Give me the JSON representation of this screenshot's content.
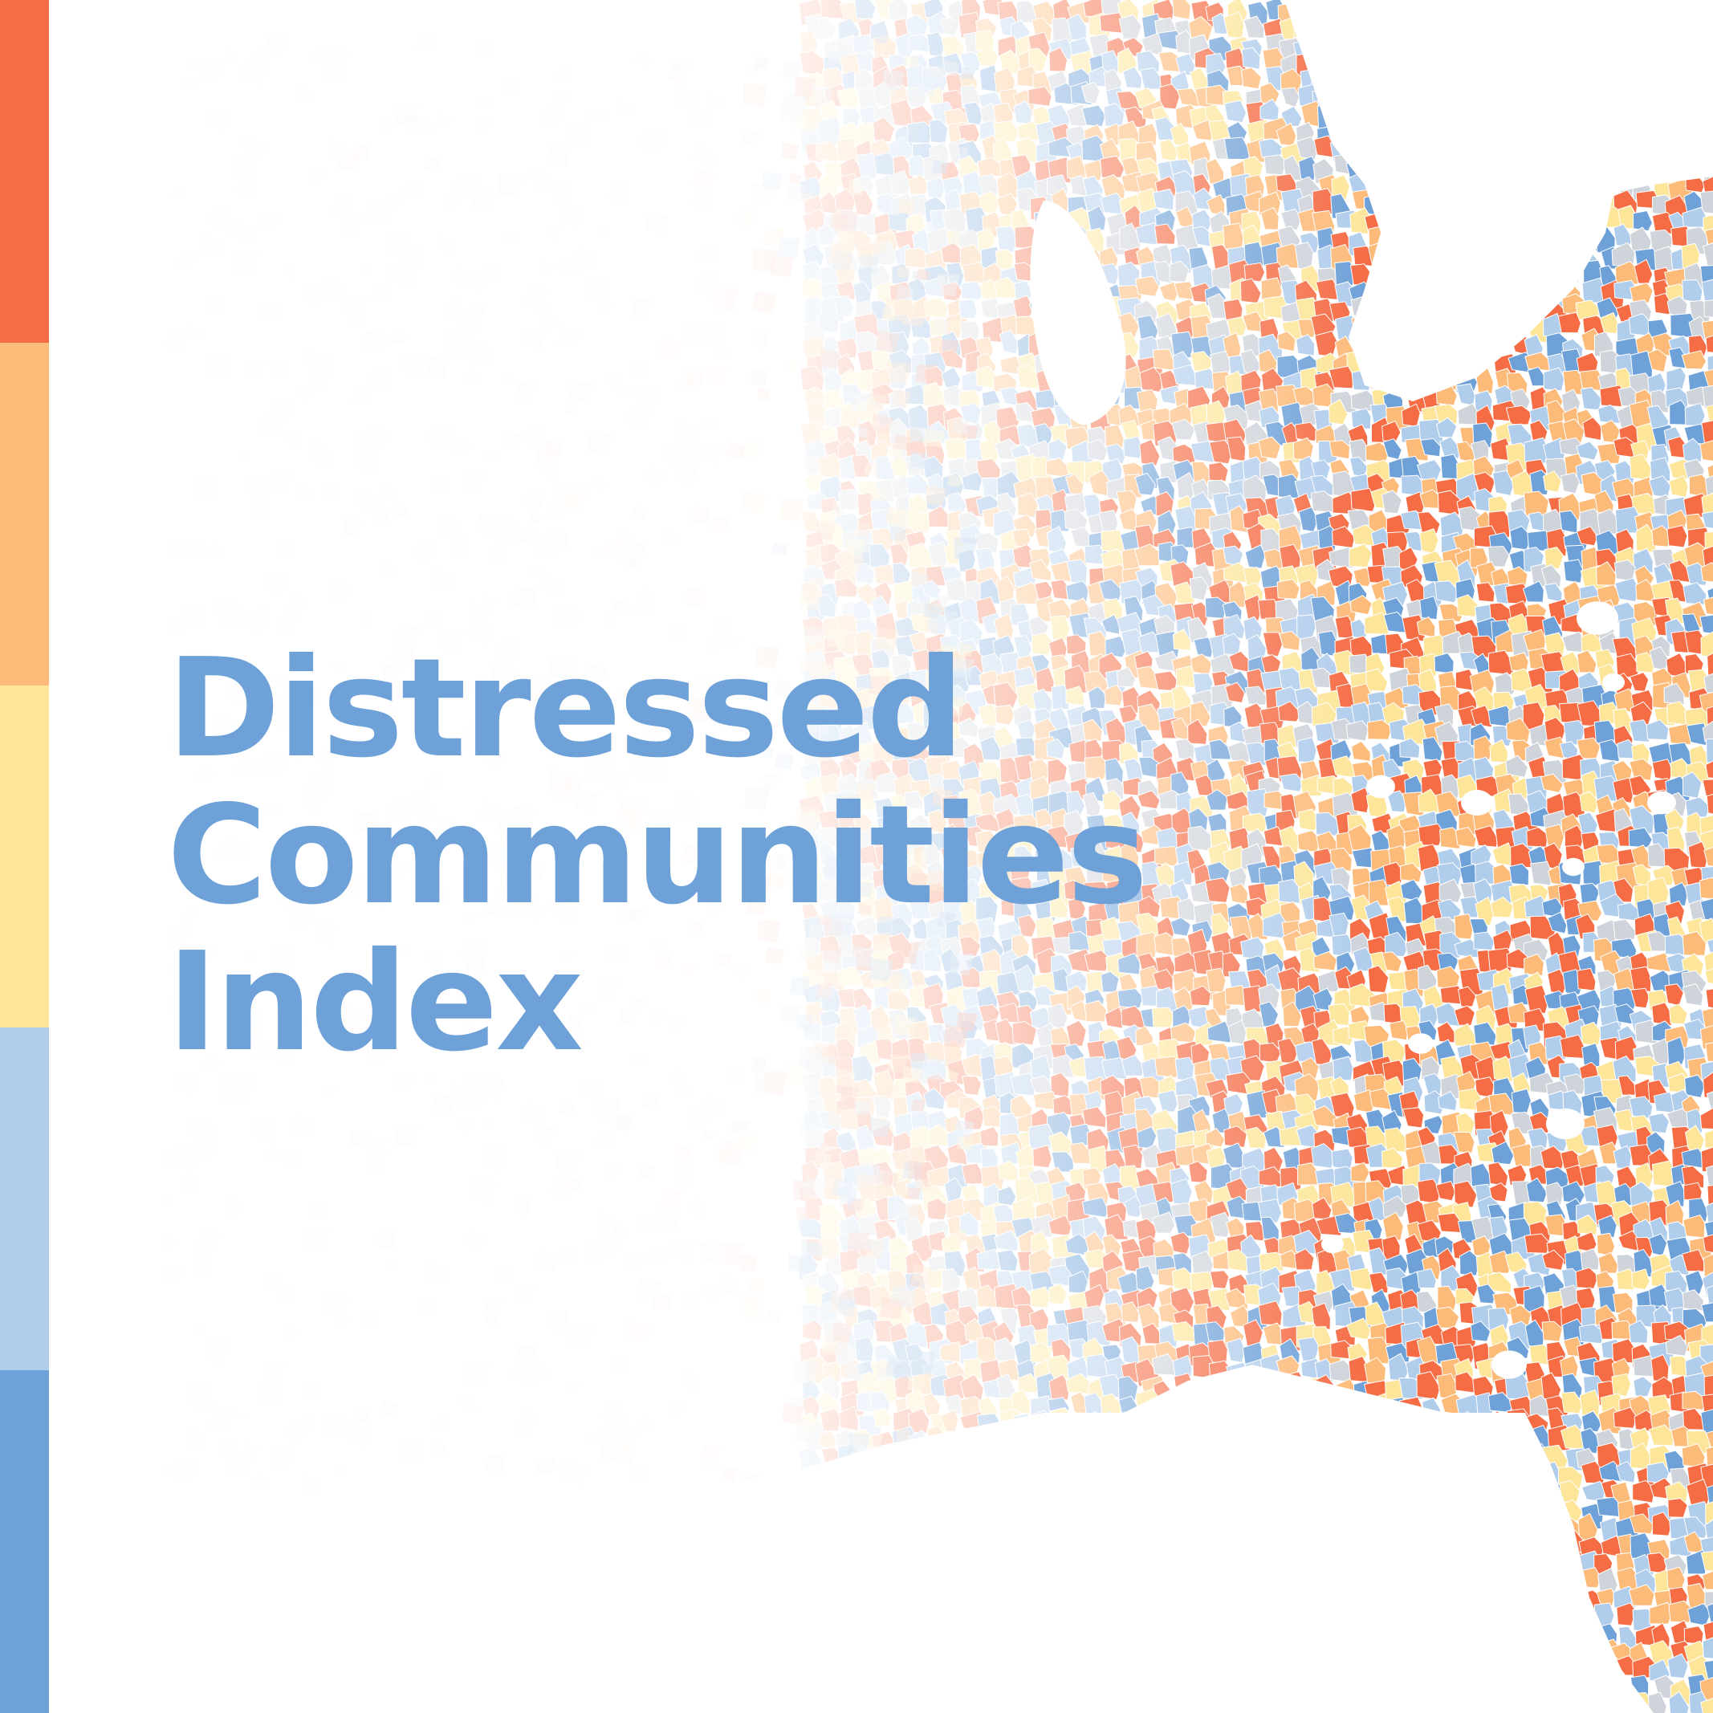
{
  "title": {
    "line1": "Distressed",
    "line2": "Communities",
    "line3": "Index"
  },
  "colors": {
    "title": "#6ea1d8",
    "background": "#ffffff",
    "distress_scale": [
      "#f56c45",
      "#fdbb7a",
      "#fde69a",
      "#b1cdec",
      "#6ea1d8"
    ],
    "map_neutral": "#cfd3da"
  },
  "map": {
    "subject": "Eastern United States zip codes shaded by distress quintile",
    "fade": "map fades to white toward the left"
  }
}
